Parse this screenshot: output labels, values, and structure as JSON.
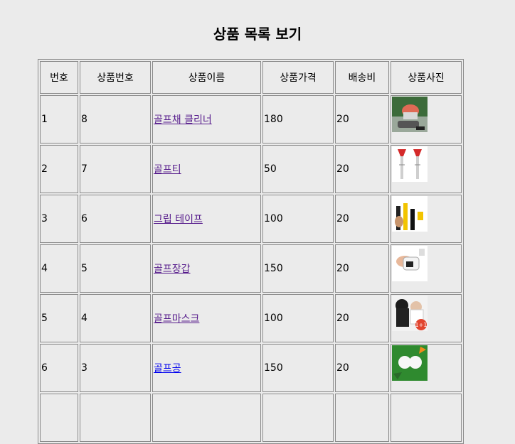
{
  "page": {
    "title": "상품 목록 보기"
  },
  "table": {
    "headers": [
      "번호",
      "상품번호",
      "상품이름",
      "상품가격",
      "배송비",
      "상품사진"
    ],
    "rows": [
      {
        "no": "1",
        "product_no": "8",
        "name": "골프채 클리너",
        "price": "180",
        "shipping": "20",
        "photo": "golf-club-cleaner-photo",
        "visited": true
      },
      {
        "no": "2",
        "product_no": "7",
        "name": "골프티",
        "price": "50",
        "shipping": "20",
        "photo": "golf-tee-photo",
        "visited": true
      },
      {
        "no": "3",
        "product_no": "6",
        "name": "그립 테이프",
        "price": "100",
        "shipping": "20",
        "photo": "grip-tape-photo",
        "visited": true
      },
      {
        "no": "4",
        "product_no": "5",
        "name": "골프장갑",
        "price": "150",
        "shipping": "20",
        "photo": "golf-glove-photo",
        "visited": true
      },
      {
        "no": "5",
        "product_no": "4",
        "name": "골프마스크",
        "price": "100",
        "shipping": "20",
        "photo": "golf-mask-photo",
        "visited": true
      },
      {
        "no": "6",
        "product_no": "3",
        "name": "골프공",
        "price": "150",
        "shipping": "20",
        "photo": "golf-ball-photo",
        "visited": false
      },
      {
        "no": "",
        "product_no": "",
        "name": "",
        "price": "",
        "shipping": "",
        "photo": "",
        "visited": false
      }
    ],
    "badges": {
      "mask_badge": "1+1"
    }
  },
  "colors": {
    "background": "#ebebeb",
    "visited_link": "#551a8b",
    "link": "#0000ee",
    "border": "#8a8a8a"
  }
}
